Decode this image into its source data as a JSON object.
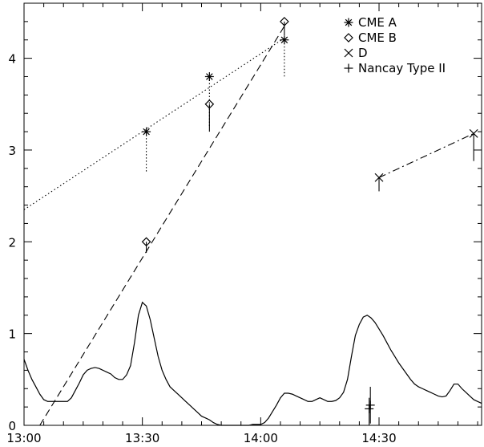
{
  "chart_data": {
    "type": "line",
    "title": "",
    "xlabel": "",
    "ylabel": "",
    "xlim": [
      "13:00",
      "14:56"
    ],
    "ylim": [
      0,
      4.6
    ],
    "x_ticks": [
      "13:00",
      "13:30",
      "14:00",
      "14:30"
    ],
    "y_ticks": [
      "0",
      "1",
      "2",
      "3",
      "4"
    ],
    "grid": false,
    "legend_position": "top-right",
    "legend": [
      {
        "label": "CME A",
        "marker": "asterisk"
      },
      {
        "label": "CME B",
        "marker": "diamond"
      },
      {
        "label": "D",
        "marker": "cross"
      },
      {
        "label": "Nancay Type II",
        "marker": "plus"
      }
    ],
    "series": [
      {
        "name": "CME A",
        "marker": "asterisk",
        "points": [
          {
            "x": "13:31",
            "y": 3.2,
            "err_low": 0.45
          },
          {
            "x": "13:47",
            "y": 3.8,
            "err_low": 0.55
          },
          {
            "x": "14:06",
            "y": 4.2,
            "err_low": 0.4
          }
        ],
        "fit": {
          "style": "dotted",
          "from": {
            "x": "13:00",
            "y": 2.35
          },
          "to": {
            "x": "14:06",
            "y": 4.22
          }
        }
      },
      {
        "name": "CME B",
        "marker": "diamond",
        "points": [
          {
            "x": "13:31",
            "y": 2.0,
            "err_low": 0.12
          },
          {
            "x": "13:47",
            "y": 3.5,
            "err_low": 0.3
          },
          {
            "x": "14:06",
            "y": 4.4,
            "err_low": 0.15
          }
        ],
        "fit": {
          "style": "dashed",
          "from": {
            "x": "13:04",
            "y": 0.0
          },
          "to": {
            "x": "14:06",
            "y": 4.35
          }
        }
      },
      {
        "name": "D",
        "marker": "cross",
        "points": [
          {
            "x": "14:30",
            "y": 2.7,
            "err_low": 0.15
          },
          {
            "x": "14:54",
            "y": 3.18,
            "err_low": 0.3
          }
        ],
        "fit": {
          "style": "dash-dot",
          "from": {
            "x": "14:30",
            "y": 2.7
          },
          "to": {
            "x": "14:54",
            "y": 3.18
          }
        }
      },
      {
        "name": "Nancay Type II",
        "marker": "plus",
        "points": [
          {
            "x": "14:27.5",
            "y": 0.18,
            "err_up": 0.12,
            "err_low": 0.18
          },
          {
            "x": "14:27.8",
            "y": 0.22,
            "err_up": 0.2,
            "err_low": 0.2
          }
        ]
      },
      {
        "name": "",
        "style": "solid",
        "x": [
          "13:00",
          "13:01",
          "13:02",
          "13:03",
          "13:04",
          "13:05",
          "13:06",
          "13:07",
          "13:08",
          "13:09",
          "13:10",
          "13:11",
          "13:12",
          "13:13",
          "13:14",
          "13:15",
          "13:16",
          "13:17",
          "13:18",
          "13:19",
          "13:20",
          "13:21",
          "13:22",
          "13:23",
          "13:24",
          "13:25",
          "13:26",
          "13:27",
          "13:28",
          "13:29",
          "13:30",
          "13:31",
          "13:32",
          "13:33",
          "13:34",
          "13:35",
          "13:36",
          "13:37",
          "13:38",
          "13:39",
          "13:40",
          "13:41",
          "13:42",
          "13:43",
          "13:44",
          "13:45",
          "13:46",
          "13:47",
          "13:48",
          "13:49",
          "13:50",
          "13:51",
          "13:52",
          "13:53",
          "13:54",
          "13:55",
          "13:56",
          "13:57",
          "13:58",
          "13:59",
          "14:00",
          "14:01",
          "14:02",
          "14:03",
          "14:04",
          "14:05",
          "14:06",
          "14:07",
          "14:08",
          "14:09",
          "14:10",
          "14:11",
          "14:12",
          "14:13",
          "14:14",
          "14:15",
          "14:16",
          "14:17",
          "14:18",
          "14:19",
          "14:20",
          "14:21",
          "14:22",
          "14:23",
          "14:24",
          "14:25",
          "14:26",
          "14:27",
          "14:28",
          "14:29",
          "14:30",
          "14:31",
          "14:32",
          "14:33",
          "14:34",
          "14:35",
          "14:36",
          "14:37",
          "14:38",
          "14:39",
          "14:40",
          "14:41",
          "14:42",
          "14:43",
          "14:44",
          "14:45",
          "14:46",
          "14:47",
          "14:48",
          "14:49",
          "14:50",
          "14:51",
          "14:52",
          "14:53",
          "14:54",
          "14:55",
          "14:56"
        ],
        "y": [
          0.72,
          0.6,
          0.5,
          0.42,
          0.34,
          0.28,
          0.26,
          0.26,
          0.26,
          0.26,
          0.26,
          0.26,
          0.3,
          0.38,
          0.46,
          0.55,
          0.6,
          0.62,
          0.63,
          0.62,
          0.6,
          0.58,
          0.56,
          0.52,
          0.5,
          0.5,
          0.55,
          0.65,
          0.9,
          1.2,
          1.34,
          1.3,
          1.15,
          0.95,
          0.75,
          0.6,
          0.5,
          0.42,
          0.38,
          0.34,
          0.3,
          0.26,
          0.22,
          0.18,
          0.14,
          0.1,
          0.08,
          0.06,
          0.03,
          0.01,
          0.0,
          0.0,
          0.0,
          0.0,
          0.0,
          0.0,
          0.0,
          0.0,
          0.01,
          0.01,
          0.01,
          0.03,
          0.08,
          0.15,
          0.22,
          0.3,
          0.35,
          0.35,
          0.34,
          0.32,
          0.3,
          0.28,
          0.26,
          0.26,
          0.28,
          0.3,
          0.28,
          0.26,
          0.26,
          0.27,
          0.3,
          0.36,
          0.5,
          0.75,
          0.98,
          1.1,
          1.18,
          1.2,
          1.17,
          1.12,
          1.05,
          0.98,
          0.9,
          0.82,
          0.75,
          0.68,
          0.62,
          0.56,
          0.5,
          0.45,
          0.42,
          0.4,
          0.38,
          0.36,
          0.34,
          0.32,
          0.31,
          0.32,
          0.38,
          0.45,
          0.45,
          0.4,
          0.36,
          0.32,
          0.28,
          0.26,
          0.24
        ]
      }
    ]
  }
}
